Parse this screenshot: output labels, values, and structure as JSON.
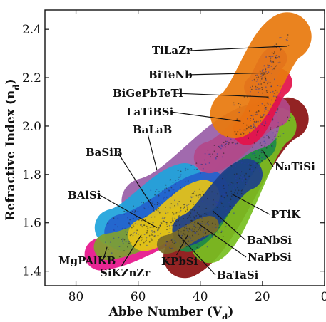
{
  "chart_data": {
    "type": "scatter",
    "title": "",
    "xlabel": "Abbe Number (V",
    "xlabel_sub": "d",
    "xlabel_suffix": ")",
    "ylabel": "Refractive Index (n",
    "ylabel_sub": "d",
    "ylabel_suffix": ")",
    "xlim": [
      90,
      0
    ],
    "ylim": [
      1.34,
      2.48
    ],
    "xticks": [
      80,
      60,
      40,
      20,
      0
    ],
    "xtick_labels": [
      "80",
      "60",
      "40",
      "20",
      "0"
    ],
    "yticks": [
      1.4,
      1.6,
      1.8,
      2.0,
      2.2,
      2.4
    ],
    "ytick_labels": [
      "1.4",
      "1.6",
      "1.8",
      "2.0",
      "2.2",
      "2.4"
    ],
    "grid": false,
    "legend": "none",
    "regions": [
      {
        "name": "PTiK",
        "color": "#8b1212",
        "x_range": [
          12,
          45
        ],
        "y_range": [
          1.46,
          2.03
        ]
      },
      {
        "name": "MgPAlKB",
        "color": "#e6168c",
        "x_range": [
          38,
          72
        ],
        "y_range": [
          1.47,
          1.63
        ]
      },
      {
        "name": "NaTiSi",
        "color": "#79c021",
        "x_range": [
          15,
          37
        ],
        "y_range": [
          1.51,
          2.0
        ]
      },
      {
        "name": "BaNbSi",
        "color": "#1c8a48",
        "x_range": [
          21,
          44
        ],
        "y_range": [
          1.55,
          1.93
        ]
      },
      {
        "name": "BaLaB",
        "color": "#9a5fa8",
        "x_range": [
          22,
          58
        ],
        "y_range": [
          1.69,
          2.0
        ]
      },
      {
        "name": "BaSiB",
        "color": "#1fa4dc",
        "x_range": [
          45,
          68
        ],
        "y_range": [
          1.58,
          1.77
        ]
      },
      {
        "name": "BAlSi",
        "color": "#2462cc",
        "x_range": [
          37,
          65
        ],
        "y_range": [
          1.56,
          1.74
        ]
      },
      {
        "name": "SiKZnZr",
        "color": "#80a030",
        "x_range": [
          40,
          70
        ],
        "y_range": [
          1.5,
          1.63
        ]
      },
      {
        "name": "KPbSi",
        "color": "#e6c316",
        "x_range": [
          39,
          58
        ],
        "y_range": [
          1.55,
          1.71
        ]
      },
      {
        "name": "NaPbSi",
        "color": "#1d3f8a",
        "x_range": [
          25,
          44
        ],
        "y_range": [
          1.57,
          1.8
        ]
      },
      {
        "name": "BaTaSi",
        "color": "#7a6a28",
        "x_range": [
          37,
          51
        ],
        "y_range": [
          1.51,
          1.59
        ]
      },
      {
        "name": "LaTiBSi",
        "color": "#b3488a",
        "x_range": [
          16,
          37
        ],
        "y_range": [
          1.87,
          2.06
        ]
      },
      {
        "name": "BiGePbTeTl",
        "color": "#e3124a",
        "x_range": [
          15,
          25
        ],
        "y_range": [
          1.98,
          2.18
        ]
      },
      {
        "name": "BiTeNb",
        "color": "#9b2fc0",
        "x_range": [
          16,
          22
        ],
        "y_range": [
          2.16,
          2.28
        ]
      },
      {
        "name": "TiLaZr",
        "color": "#e87a0e",
        "x_range": [
          12,
          29
        ],
        "y_range": [
          2.05,
          2.37
        ]
      }
    ],
    "annotations": [
      "TiLaZr",
      "BiTeNb",
      "BiGePbTeTl",
      "LaTiBSi",
      "BaLaB",
      "BaSiB",
      "BAlSi",
      "MgPAlKB",
      "SiKZnZr",
      "KPbSi",
      "BaTaSi",
      "NaPbSi",
      "BaNbSi",
      "PTiK",
      "NaTiSi"
    ]
  }
}
